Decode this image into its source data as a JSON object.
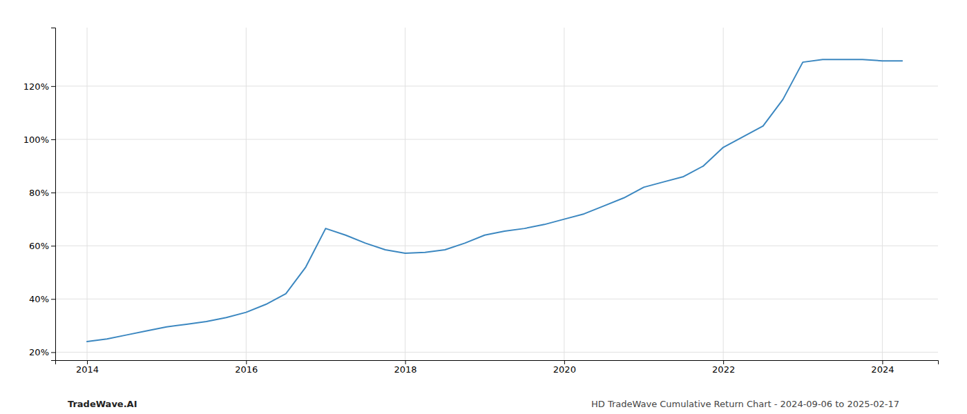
{
  "chart_data": {
    "type": "line",
    "x": [
      2014.0,
      2014.25,
      2014.5,
      2014.75,
      2015.0,
      2015.25,
      2015.5,
      2015.75,
      2016.0,
      2016.25,
      2016.5,
      2016.75,
      2017.0,
      2017.25,
      2017.5,
      2017.75,
      2018.0,
      2018.25,
      2018.5,
      2018.75,
      2019.0,
      2019.25,
      2019.5,
      2019.75,
      2020.0,
      2020.25,
      2020.5,
      2020.75,
      2021.0,
      2021.25,
      2021.5,
      2021.75,
      2022.0,
      2022.25,
      2022.5,
      2022.75,
      2023.0,
      2023.25,
      2023.5,
      2023.75,
      2024.0,
      2024.25
    ],
    "values": [
      24,
      25,
      26.5,
      28,
      29.5,
      30.5,
      31.5,
      33,
      35,
      38,
      42,
      52,
      66.5,
      64,
      61,
      58.5,
      57.2,
      57.5,
      58.5,
      61,
      64,
      65.5,
      66.5,
      68,
      70,
      72,
      75,
      78,
      82,
      84,
      86,
      90,
      97,
      101,
      105,
      115,
      129,
      130,
      130,
      130,
      129.5,
      129.5
    ],
    "color": "#3b87c0",
    "xlim": [
      2013.6,
      2024.7
    ],
    "xticks": [
      2014,
      2016,
      2018,
      2020,
      2022,
      2024
    ],
    "ylim": [
      17,
      142
    ],
    "yticks": [
      {
        "value": 20,
        "label": "20%"
      },
      {
        "value": 40,
        "label": "40%"
      },
      {
        "value": 60,
        "label": "60%"
      },
      {
        "value": 80,
        "label": "80%"
      },
      {
        "value": 100,
        "label": "100%"
      },
      {
        "value": 120,
        "label": "120%"
      }
    ],
    "grid": true,
    "annotations": [
      "TradeWave.AI",
      "HD TradeWave Cumulative Return Chart - 2024-09-06 to 2025-02-17"
    ]
  }
}
